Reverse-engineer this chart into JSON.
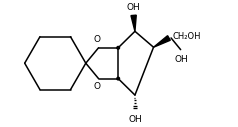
{
  "bg_color": "#ffffff",
  "line_color": "#000000",
  "lw": 1.1,
  "fs": 6.5,
  "figsize": [
    2.38,
    1.27
  ],
  "dpi": 100,
  "xlim": [
    0.0,
    8.5
  ],
  "ylim": [
    0.5,
    5.2
  ]
}
